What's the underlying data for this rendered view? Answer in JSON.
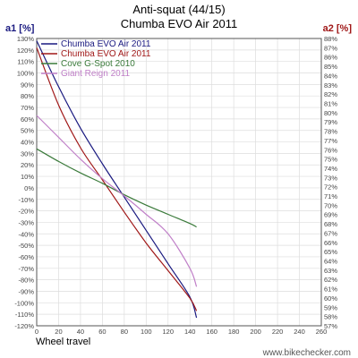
{
  "chart_data": {
    "type": "line",
    "title": "Anti-squat (44/15)",
    "subtitle": "Chumba EVO Air 2011",
    "xlabel": "Wheel travel",
    "ylabel_left": "a1 [%]",
    "ylabel_right": "a2 [%]",
    "xlim": [
      0,
      260
    ],
    "ylim_left": [
      -120,
      130
    ],
    "ylim_right": [
      57,
      88
    ],
    "x_ticks": [
      "0",
      "20",
      "40",
      "60",
      "80",
      "100",
      "120",
      "140",
      "160",
      "180",
      "200",
      "220",
      "240",
      "260"
    ],
    "y_ticks_left": [
      "130%",
      "120%",
      "110%",
      "100%",
      "90%",
      "80%",
      "70%",
      "60%",
      "50%",
      "40%",
      "30%",
      "20%",
      "10%",
      "0%",
      "-10%",
      "-20%",
      "-30%",
      "-40%",
      "-50%",
      "-60%",
      "-70%",
      "-80%",
      "-90%",
      "-100%",
      "-110%",
      "-120%"
    ],
    "y_ticks_right": [
      "88%",
      "87%",
      "86%",
      "85%",
      "84%",
      "83%",
      "82%",
      "81%",
      "80%",
      "79%",
      "78%",
      "77%",
      "76%",
      "75%",
      "74%",
      "73%",
      "72%",
      "71%",
      "70%",
      "69%",
      "68%",
      "67%",
      "66%",
      "65%",
      "64%",
      "63%",
      "62%",
      "61%",
      "60%",
      "59%",
      "58%",
      "57%"
    ],
    "grid": true,
    "legend_position": "top-left",
    "series": [
      {
        "name": "Chumba EVO Air 2011",
        "color": "#1a1a80",
        "x": [
          0,
          20,
          40,
          60,
          80,
          100,
          120,
          140,
          146
        ],
        "y": [
          128,
          88,
          52,
          21,
          -8,
          -37,
          -66,
          -95,
          -113
        ]
      },
      {
        "name": "Chumba EVO Air 2011",
        "color": "#a01818",
        "x": [
          0,
          20,
          40,
          60,
          80,
          100,
          120,
          140,
          146
        ],
        "y": [
          122,
          72,
          35,
          7,
          -21,
          -48,
          -72,
          -96,
          -107
        ]
      },
      {
        "name": "Cove G-Spot 2010",
        "color": "#3a7a3a",
        "x": [
          0,
          20,
          40,
          60,
          80,
          100,
          120,
          140,
          146
        ],
        "y": [
          34,
          23,
          13,
          4,
          -6,
          -15,
          -23,
          -31,
          -34
        ]
      },
      {
        "name": "Giant Reign 2011",
        "color": "#c080c8",
        "x": [
          0,
          20,
          40,
          60,
          80,
          100,
          120,
          140,
          146
        ],
        "y": [
          63,
          44,
          25,
          8,
          -7,
          -23,
          -40,
          -70,
          -86
        ]
      }
    ],
    "watermark": "www.bikechecker.com"
  }
}
